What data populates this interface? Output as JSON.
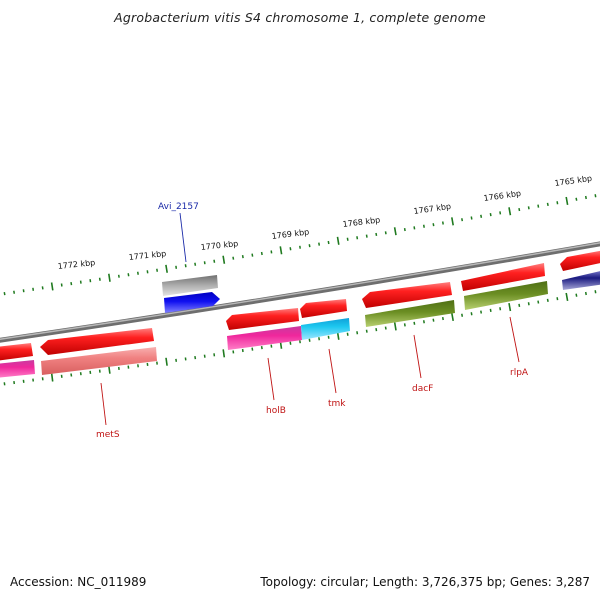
{
  "title": "Agrobacterium vitis S4 chromosome 1, complete genome",
  "accession": "Accession: NC_011989",
  "topology": "Topology: circular; Length: 3,726,375 bp; Genes: 3,287",
  "colors": {
    "background": "#ffffff",
    "backbone": "#8a8a8a",
    "tick": "#1f7a1f",
    "gene_label_red": "#c01414",
    "gene_label_blue": "#1a2aa8",
    "red": "#ff1a1a",
    "pink": "#f08080",
    "magenta": "#f0279c",
    "cyan": "#1ec8f0",
    "olive": "#6b8e23",
    "blue": "#1010f0",
    "navy": "#1a1a80",
    "grey": "#a8a8a8"
  },
  "scale_labels": [
    {
      "id": "k1772",
      "text": "1772 kbp"
    },
    {
      "id": "k1771",
      "text": "1771 kbp"
    },
    {
      "id": "k1770",
      "text": "1770 kbp"
    },
    {
      "id": "k1769",
      "text": "1769 kbp"
    },
    {
      "id": "k1768",
      "text": "1768 kbp"
    },
    {
      "id": "k1767",
      "text": "1767 kbp"
    },
    {
      "id": "k1766",
      "text": "1766 kbp"
    },
    {
      "id": "k1765",
      "text": "1765 kbp"
    }
  ],
  "gene_labels": [
    {
      "id": "metS",
      "text": "metS"
    },
    {
      "id": "holB",
      "text": "holB"
    },
    {
      "id": "tmk",
      "text": "tmk"
    },
    {
      "id": "dacF",
      "text": "dacF"
    },
    {
      "id": "rlpA",
      "text": "rlpA"
    },
    {
      "id": "Avi_2157",
      "text": "Avi_2157"
    }
  ]
}
